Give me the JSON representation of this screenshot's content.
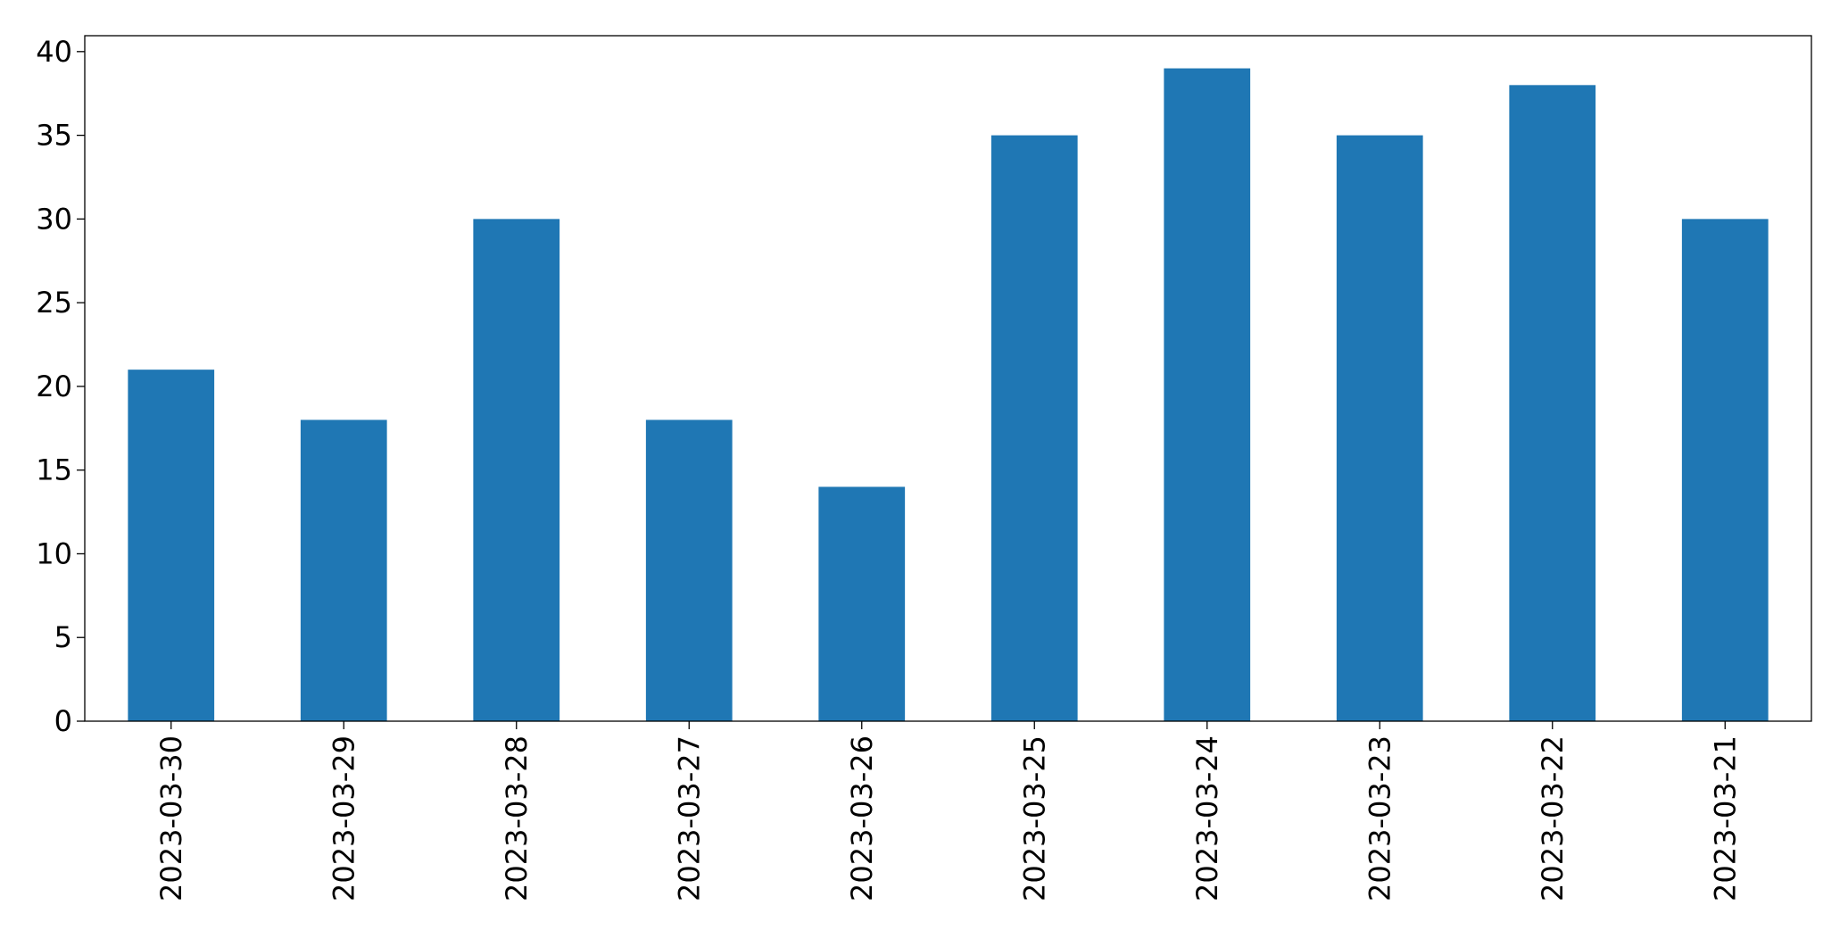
{
  "chart_data": {
    "type": "bar",
    "categories": [
      "2023-03-30",
      "2023-03-29",
      "2023-03-28",
      "2023-03-27",
      "2023-03-26",
      "2023-03-25",
      "2023-03-24",
      "2023-03-23",
      "2023-03-22",
      "2023-03-21"
    ],
    "values": [
      21,
      18,
      30,
      18,
      14,
      35,
      39,
      35,
      38,
      30
    ],
    "color": "#1f77b4",
    "ylim": [
      0,
      40.95
    ],
    "yticks": [
      0,
      5,
      10,
      15,
      20,
      25,
      30,
      35,
      40
    ],
    "grid": false
  }
}
